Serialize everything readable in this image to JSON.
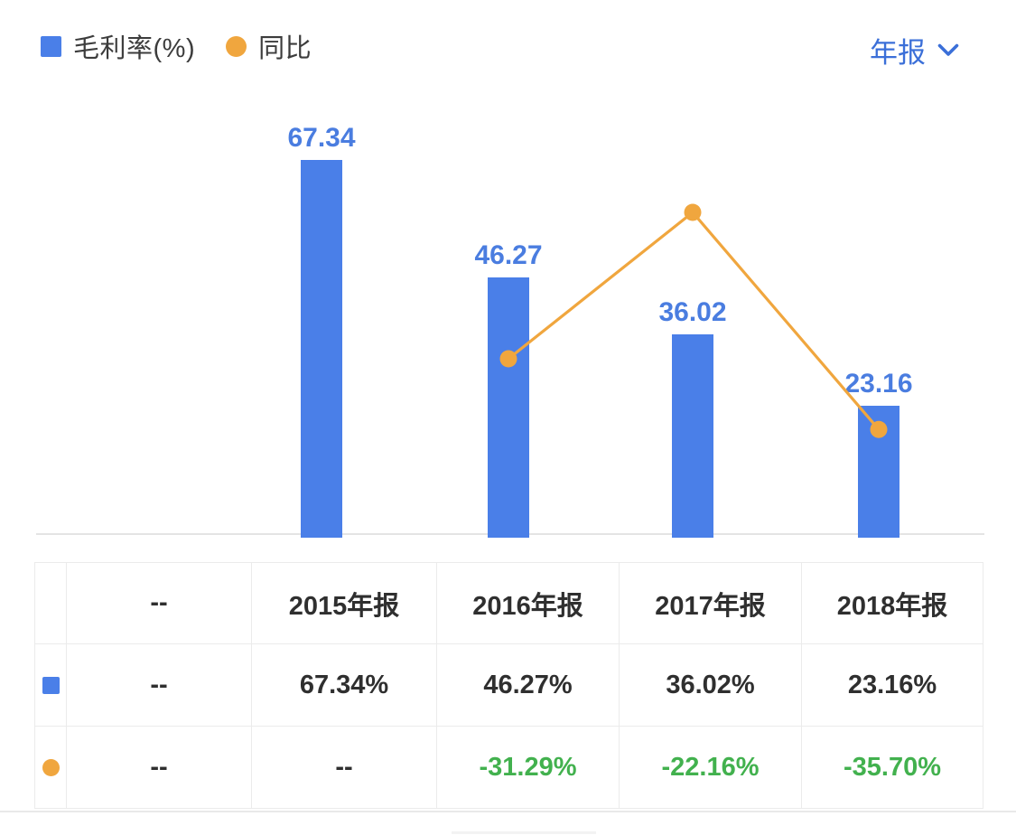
{
  "legend": {
    "bar_label": "毛利率(%)",
    "line_label": "同比"
  },
  "period_selector": {
    "label": "年报",
    "icon": "chevron-down"
  },
  "colors": {
    "bar_blue": "#4a7fe8",
    "line_orange": "#f0a63e",
    "label_blue": "#4a7de0",
    "link_blue": "#3b6fd8",
    "green": "#42b14e",
    "table_text": "#2f2f2f",
    "border_gray": "#ebebeb"
  },
  "chart_data": {
    "type": "bar",
    "subtype": "bar+line combo",
    "categories": [
      "2015年报",
      "2016年报",
      "2017年报",
      "2018年报"
    ],
    "series": [
      {
        "name": "毛利率(%)",
        "type": "bar",
        "values": [
          67.34,
          46.27,
          36.02,
          23.16
        ],
        "data_labels": [
          "67.34",
          "46.27",
          "36.02",
          "23.16"
        ],
        "color": "#4a7fe8"
      },
      {
        "name": "同比",
        "type": "line",
        "values": [
          null,
          -31.29,
          -22.16,
          -35.7
        ],
        "color": "#f0a63e"
      }
    ],
    "title": "",
    "xlabel": "",
    "ylabel": "",
    "grid": false,
    "legend_position": "top-left",
    "bar_axis_range": [
      0,
      70
    ],
    "line_axis_range": [
      -40,
      -15
    ]
  },
  "table": {
    "columns": [
      "",
      "--",
      "2015年报",
      "2016年报",
      "2017年报",
      "2018年报"
    ],
    "rows": [
      {
        "icon": "bar-series-swatch",
        "cells": [
          "--",
          "67.34%",
          "46.27%",
          "36.02%",
          "23.16%"
        ],
        "cell_colors": [
          "dark",
          "dark",
          "dark",
          "dark",
          "dark"
        ]
      },
      {
        "icon": "line-series-swatch",
        "cells": [
          "--",
          "--",
          "-31.29%",
          "-22.16%",
          "-35.70%"
        ],
        "cell_colors": [
          "dark",
          "dark",
          "green",
          "green",
          "green"
        ]
      }
    ]
  }
}
